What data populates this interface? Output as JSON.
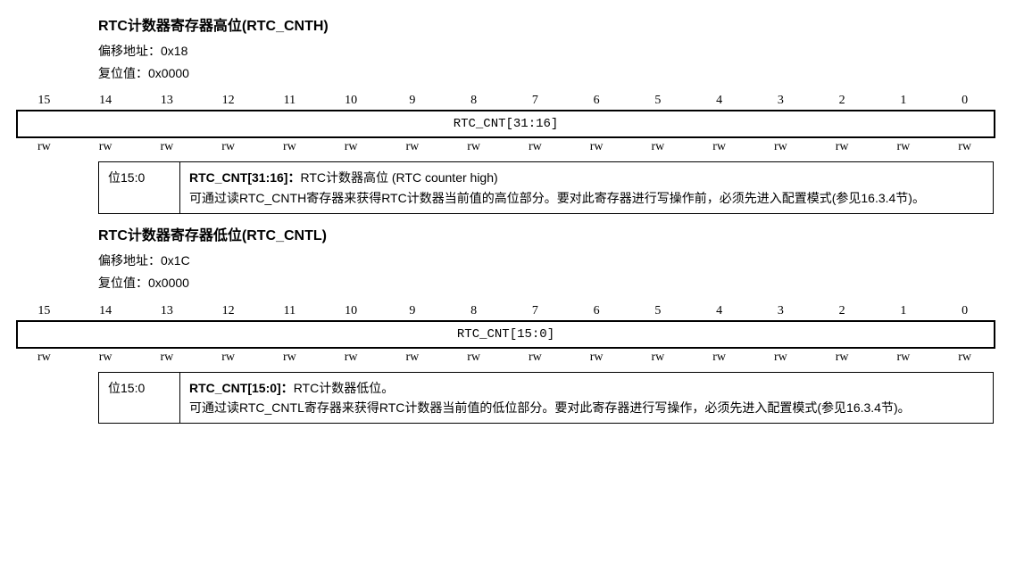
{
  "bitNumbers": [
    "15",
    "14",
    "13",
    "12",
    "11",
    "10",
    "9",
    "8",
    "7",
    "6",
    "5",
    "4",
    "3",
    "2",
    "1",
    "0"
  ],
  "reg_cnth": {
    "title": "RTC计数器寄存器高位(RTC_CNTH)",
    "offset_label": "偏移地址：",
    "offset_value": "0x18",
    "reset_label": "复位值：",
    "reset_value": "0x0000",
    "field_name": "RTC_CNT[31:16]",
    "access": "rw",
    "desc_bits": "位15:0",
    "desc_title": "RTC_CNT[31:16]：",
    "desc_title_rest": "RTC计数器高位 (RTC counter high)",
    "desc_body": "可通过读RTC_CNTH寄存器来获得RTC计数器当前值的高位部分。要对此寄存器进行写操作前，必须先进入配置模式(参见16.3.4节)。"
  },
  "reg_cntl": {
    "title": "RTC计数器寄存器低位(RTC_CNTL)",
    "offset_label": "偏移地址：",
    "offset_value": "0x1C",
    "reset_label": "复位值：",
    "reset_value": "0x0000",
    "field_name": "RTC_CNT[15:0]",
    "access": "rw",
    "desc_bits": "位15:0",
    "desc_title": "RTC_CNT[15:0]：",
    "desc_title_rest": "RTC计数器低位。",
    "desc_body": "可通过读RTC_CNTL寄存器来获得RTC计数器当前值的低位部分。要对此寄存器进行写操作，必须先进入配置模式(参见16.3.4节)。"
  }
}
